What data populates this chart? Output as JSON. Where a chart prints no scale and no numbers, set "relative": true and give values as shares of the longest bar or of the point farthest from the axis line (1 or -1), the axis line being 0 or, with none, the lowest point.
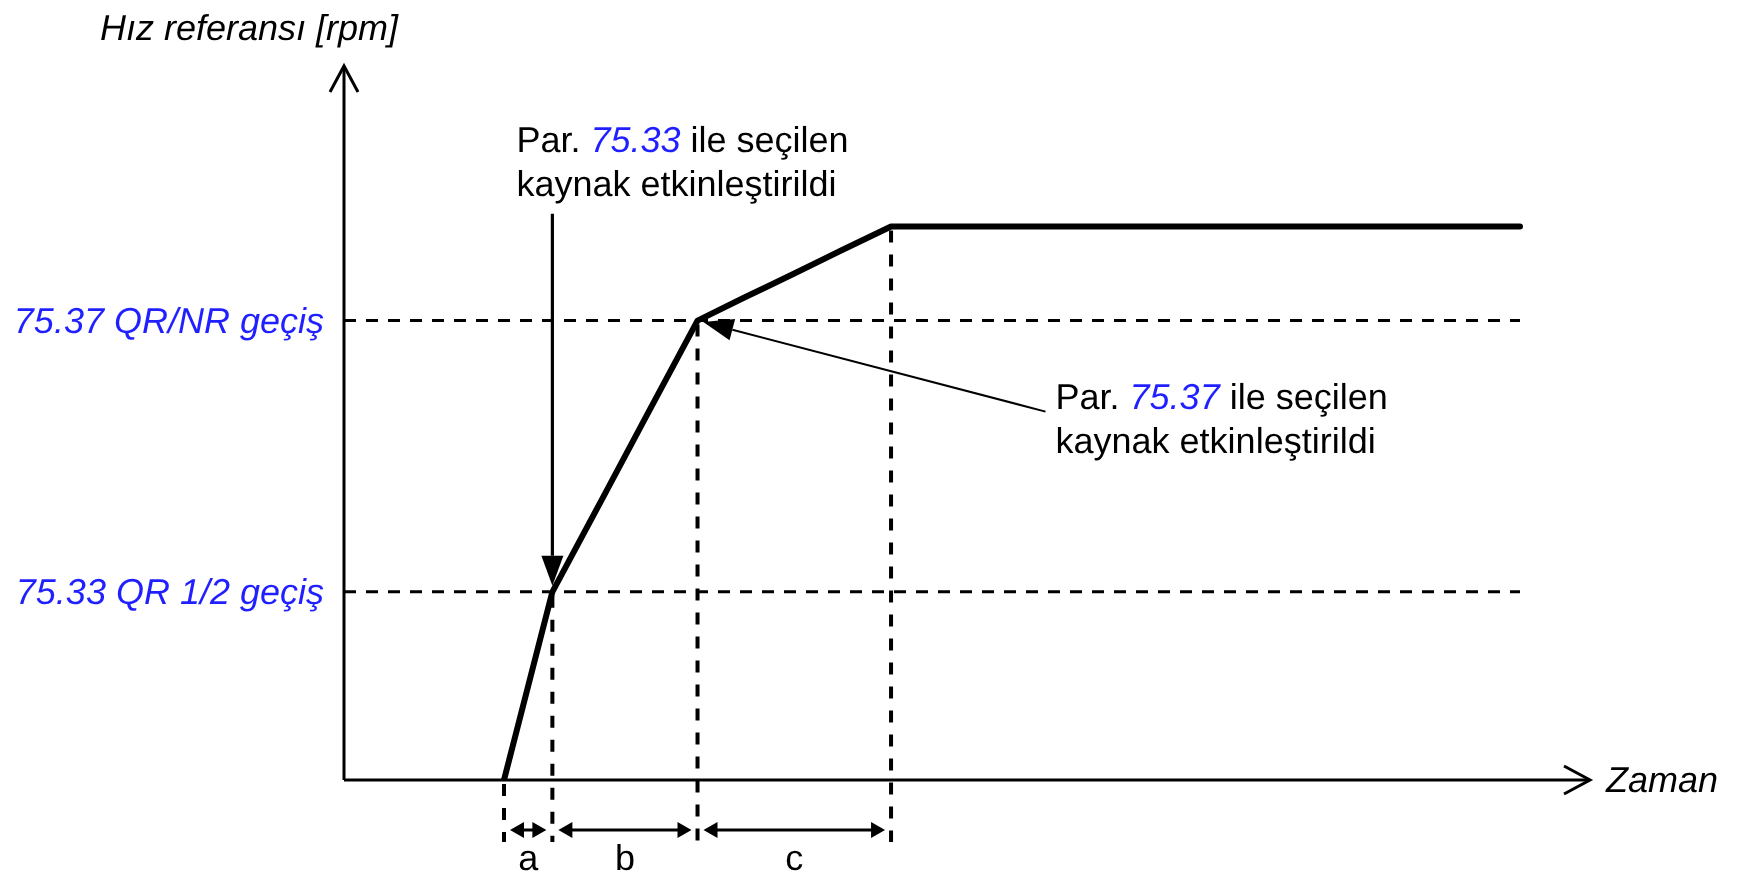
{
  "chart_data": {
    "type": "line",
    "relative": true,
    "xlabel": "Zaman",
    "marker": "none",
    "line_style": "solid",
    "categories": [
      null,
      null,
      null,
      null,
      null,
      null,
      null,
      null,
      null,
      null,
      null,
      null,
      null,
      null,
      null,
      null,
      null,
      null,
      null,
      null,
      null,
      null
    ],
    "series": [
      {
        "color": "#000000",
        "values": [
          0,
          0.34,
          0.503,
          0.667,
          0.83,
          0.873,
          0.915,
          0.958,
          1,
          1,
          1,
          1,
          1,
          1,
          1,
          1,
          1,
          1,
          1,
          1,
          1,
          1
        ]
      }
    ],
    "ref_lines": [
      {
        "axis": "y",
        "value": 0.34,
        "label": "75.33 QR 1/2 geçiş",
        "color": "#000000",
        "line_style": "dashed"
      },
      {
        "axis": "y",
        "value": 0.83,
        "label": "75.37 QR/NR geçiş",
        "color": "#000000",
        "line_style": "dashed"
      }
    ],
    "annotations": [
      "Hız referansı [rpm]",
      "Par. 75.33 ile seçilen kaynak etkinleştirildi",
      "Par. 75.37 ile seçilen kaynak etkinleştirildi",
      "a",
      "b",
      "c"
    ]
  }
}
